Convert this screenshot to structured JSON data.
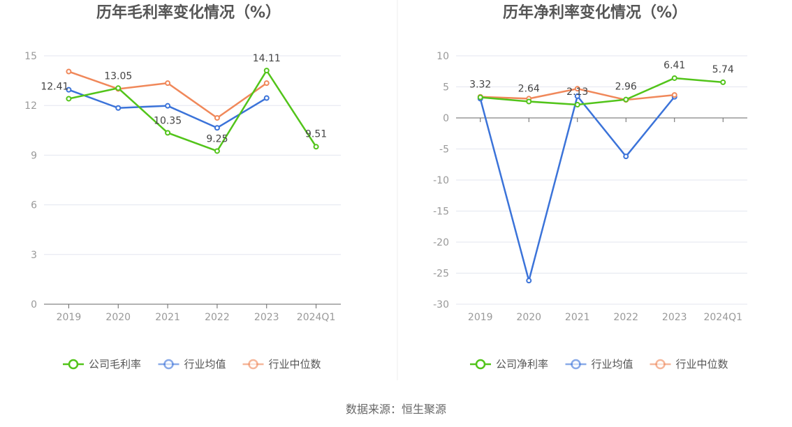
{
  "source": "数据来源：恒生聚源",
  "chart_data": [
    {
      "type": "line",
      "title": "历年毛利率变化情况（%）",
      "categories": [
        "2019",
        "2020",
        "2021",
        "2022",
        "2023",
        "2024Q1"
      ],
      "ylim": [
        0,
        15
      ],
      "yticks": [
        0,
        3,
        6,
        9,
        12,
        15
      ],
      "grid": true,
      "legend_position": "bottom",
      "series": [
        {
          "name": "公司毛利率",
          "color": "#52c41a",
          "values": [
            12.41,
            13.05,
            10.35,
            9.25,
            14.11,
            9.51
          ],
          "labels": [
            "12.41",
            "13.05",
            "10.35",
            "9.25",
            "14.11",
            "9.51"
          ]
        },
        {
          "name": "行业均值",
          "color": "#3b73d9",
          "values": [
            12.95,
            11.85,
            11.98,
            10.65,
            12.45,
            null
          ]
        },
        {
          "name": "行业中位数",
          "color": "#f0885a",
          "values": [
            14.05,
            13.0,
            13.35,
            11.25,
            13.35,
            null
          ]
        }
      ]
    },
    {
      "type": "line",
      "title": "历年净利率变化情况（%）",
      "categories": [
        "2019",
        "2020",
        "2021",
        "2022",
        "2023",
        "2024Q1"
      ],
      "ylim": [
        -30,
        10
      ],
      "yticks": [
        -30,
        -25,
        -20,
        -15,
        -10,
        -5,
        0,
        5,
        10
      ],
      "grid": true,
      "legend_position": "bottom",
      "series": [
        {
          "name": "公司净利率",
          "color": "#52c41a",
          "values": [
            3.32,
            2.64,
            2.13,
            2.96,
            6.41,
            5.74
          ],
          "labels": [
            "3.32",
            "2.64",
            "2.13",
            "2.96",
            "6.41",
            "5.74"
          ]
        },
        {
          "name": "行业均值",
          "color": "#3b73d9",
          "values": [
            3.1,
            -26.2,
            3.5,
            -6.2,
            3.4,
            null
          ]
        },
        {
          "name": "行业中位数",
          "color": "#f0885a",
          "values": [
            3.4,
            3.1,
            4.7,
            2.9,
            3.7,
            null
          ]
        }
      ]
    }
  ]
}
